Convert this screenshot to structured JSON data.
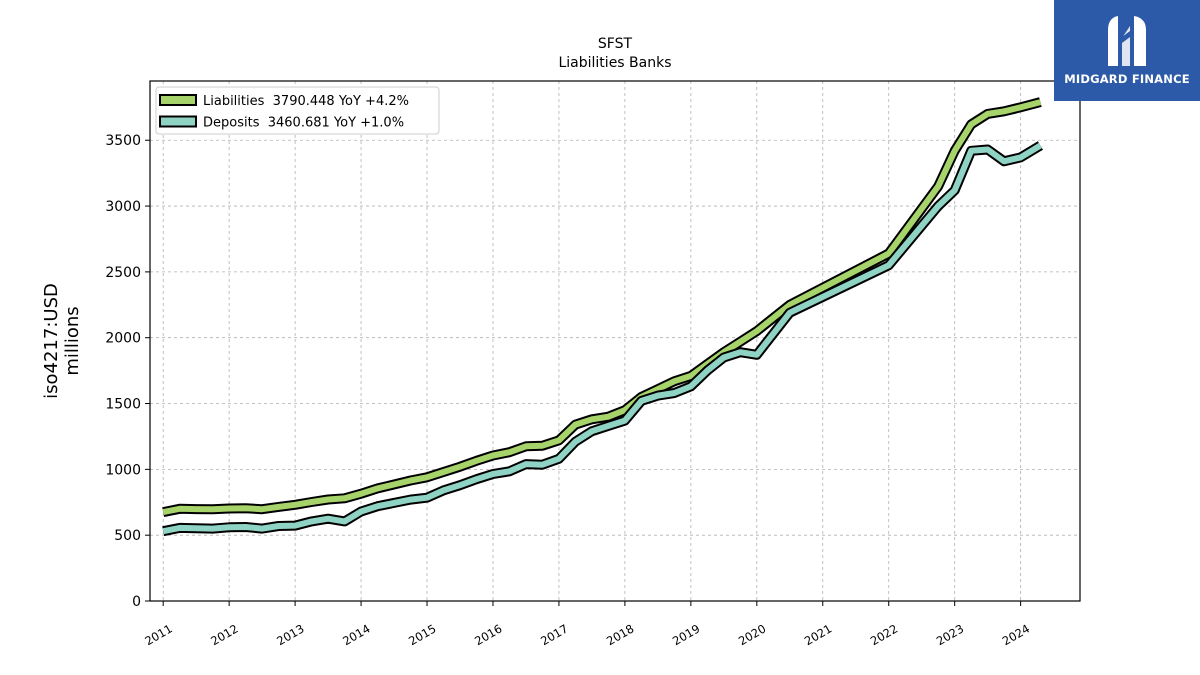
{
  "brand": {
    "name": "MIDGARD FINANCE",
    "logo_icon": "midgard-logo-icon",
    "bg_color": "#2d5aa8"
  },
  "chart_data": {
    "type": "line",
    "title": "SFST",
    "subtitle": "Liabilities Banks",
    "ylabel": "iso4217:USD\nmillions",
    "xlabel": "",
    "ylim": [
      0,
      3950
    ],
    "xlim": [
      2010.8,
      2024.9
    ],
    "yticks": [
      0,
      500,
      1000,
      1500,
      2000,
      2500,
      3000,
      3500
    ],
    "xticks": [
      "2011",
      "2012",
      "2013",
      "2014",
      "2015",
      "2016",
      "2017",
      "2018",
      "2019",
      "2020",
      "2021",
      "2022",
      "2023",
      "2024"
    ],
    "grid": true,
    "legend_position": "top-left",
    "series": [
      {
        "name": "Liabilities",
        "legend_label": "Liabilities  3790.448 YoY +4.2%",
        "color": "#a6d36a",
        "x": [
          2011.0,
          2011.25,
          2011.5,
          2011.75,
          2012.0,
          2012.25,
          2012.5,
          2012.75,
          2013.0,
          2013.25,
          2013.5,
          2013.75,
          2014.0,
          2014.25,
          2014.5,
          2014.75,
          2015.0,
          2015.25,
          2015.5,
          2015.75,
          2016.0,
          2016.25,
          2016.5,
          2016.75,
          2017.0,
          2017.25,
          2017.5,
          2017.75,
          2018.0,
          2018.25,
          2018.5,
          2018.75,
          2019.0,
          2019.25,
          2019.5,
          2019.75,
          2020.0,
          2020.5,
          2022.0,
          2022.75,
          2023.0,
          2023.25,
          2023.5,
          2023.75,
          2024.0,
          2024.3
        ],
        "values": [
          675,
          700,
          698,
          697,
          703,
          705,
          697,
          715,
          731,
          752,
          771,
          780,
          815,
          855,
          885,
          915,
          940,
          980,
          1020,
          1065,
          1105,
          1130,
          1175,
          1180,
          1220,
          1340,
          1380,
          1400,
          1450,
          1550,
          1610,
          1670,
          1710,
          1800,
          1890,
          1970,
          2050,
          2250,
          2640,
          3150,
          3420,
          3620,
          3700,
          3720,
          3750,
          3790
        ]
      },
      {
        "name": "Deposits",
        "legend_label": "Deposits  3460.681 YoY +1.0%",
        "color": "#8fd3c5",
        "x": [
          2011.0,
          2011.25,
          2011.5,
          2011.75,
          2012.0,
          2012.25,
          2012.5,
          2012.75,
          2013.0,
          2013.25,
          2013.5,
          2013.75,
          2014.0,
          2014.25,
          2014.5,
          2014.75,
          2015.0,
          2015.25,
          2015.5,
          2015.75,
          2016.0,
          2016.25,
          2016.5,
          2016.75,
          2017.0,
          2017.25,
          2017.5,
          2017.75,
          2018.0,
          2018.25,
          2018.5,
          2018.75,
          2019.0,
          2019.25,
          2019.5,
          2019.75,
          2020.0,
          2020.5,
          2022.0,
          2022.75,
          2023.0,
          2023.25,
          2023.5,
          2023.75,
          2024.0,
          2024.3
        ],
        "values": [
          530,
          555,
          552,
          550,
          560,
          562,
          550,
          570,
          573,
          605,
          625,
          605,
          680,
          720,
          745,
          770,
          785,
          840,
          880,
          925,
          965,
          985,
          1040,
          1035,
          1080,
          1210,
          1290,
          1330,
          1370,
          1520,
          1560,
          1580,
          1630,
          1750,
          1850,
          1890,
          1870,
          2190,
          2550,
          3000,
          3120,
          3420,
          3430,
          3340,
          3370,
          3460
        ]
      }
    ]
  }
}
